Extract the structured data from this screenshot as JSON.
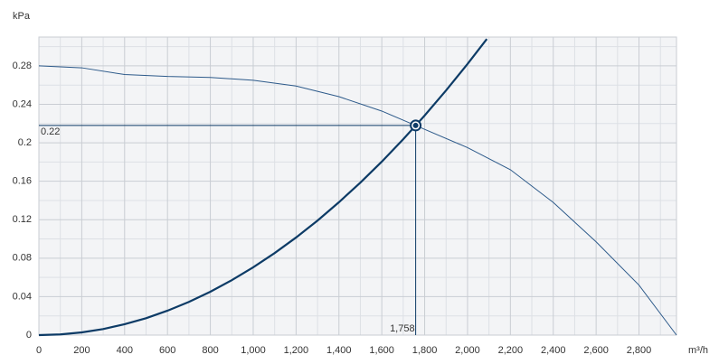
{
  "chart_data": {
    "type": "line",
    "y_unit": "kPa",
    "x_unit": "m³/h",
    "xlim": [
      0,
      2975
    ],
    "ylim": [
      0,
      0.31
    ],
    "xticks": [
      0,
      200,
      400,
      600,
      800,
      {
        "value": 1000,
        "label": "1,000"
      },
      {
        "value": 1200,
        "label": "1,200"
      },
      {
        "value": 1400,
        "label": "1,400"
      },
      {
        "value": 1600,
        "label": "1,600"
      },
      {
        "value": 1800,
        "label": "1,800"
      },
      {
        "value": 2000,
        "label": "2,000"
      },
      {
        "value": 2200,
        "label": "2,200"
      },
      {
        "value": 2400,
        "label": "2,400"
      },
      {
        "value": 2600,
        "label": "2,600"
      },
      {
        "value": 2800,
        "label": "2,800"
      }
    ],
    "yticks": [
      0,
      0.04,
      0.08,
      0.12,
      0.16,
      0.2,
      0.24,
      0.28
    ],
    "x_minor_grid": [
      100,
      300,
      500,
      700,
      900,
      1100,
      1300,
      1500,
      1700,
      1900,
      2100,
      2300,
      2500,
      2700,
      2900
    ],
    "y_minor_grid": [
      0.02,
      0.06,
      0.1,
      0.14,
      0.18,
      0.22,
      0.26,
      0.3
    ],
    "grid": true,
    "series": [
      {
        "color": "#2d5a8a",
        "width": 1,
        "x": [
          0,
          200,
          400,
          600,
          800,
          1000,
          1200,
          1400,
          1600,
          1758,
          2000,
          2200,
          2400,
          2600,
          2800,
          2975
        ],
        "values": [
          0.28,
          0.278,
          0.271,
          0.269,
          0.268,
          0.265,
          0.259,
          0.248,
          0.233,
          0.218,
          0.195,
          0.172,
          0.138,
          0.097,
          0.052,
          0
        ]
      },
      {
        "color": "#0d3b66",
        "width": 2.2,
        "x": [
          0,
          100,
          200,
          300,
          400,
          500,
          600,
          700,
          800,
          900,
          1000,
          1100,
          1200,
          1300,
          1400,
          1500,
          1600,
          1700,
          1758,
          1800,
          1900,
          2000,
          2090
        ],
        "values": [
          0,
          0.0007,
          0.0028,
          0.0063,
          0.0113,
          0.0176,
          0.0254,
          0.0345,
          0.0451,
          0.0571,
          0.0705,
          0.0853,
          0.1015,
          0.1191,
          0.1382,
          0.1586,
          0.1804,
          0.2037,
          0.218,
          0.2284,
          0.2545,
          0.282,
          0.3079
        ]
      }
    ],
    "operating_point": {
      "x": 1758,
      "y": 0.218,
      "x_label": "1,758",
      "y_label": "0.22",
      "color": "#0d3b66"
    }
  }
}
